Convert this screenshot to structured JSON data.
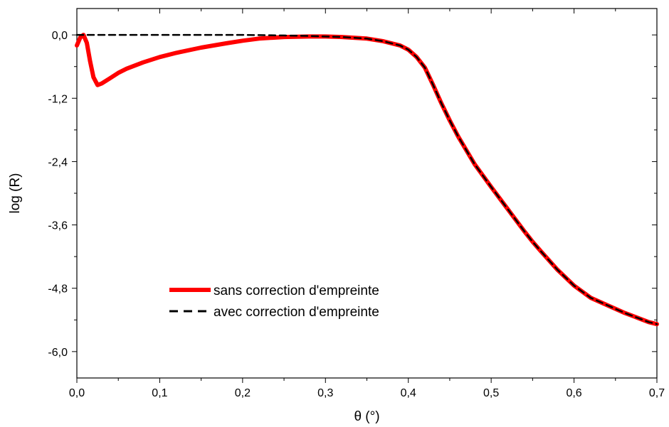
{
  "chart_data": {
    "type": "line",
    "title": "",
    "xlabel": "θ (°)",
    "ylabel": "log (R)",
    "xlim": [
      0.0,
      0.7
    ],
    "ylim": [
      -6.5,
      0.5
    ],
    "x_ticks": [
      0.0,
      0.1,
      0.2,
      0.3,
      0.4,
      0.5,
      0.6,
      0.7
    ],
    "x_tick_labels": [
      "0,0",
      "0,1",
      "0,2",
      "0,3",
      "0,4",
      "0,5",
      "0,6",
      "0,7"
    ],
    "y_ticks": [
      0.0,
      -1.2,
      -2.4,
      -3.6,
      -4.8,
      -6.0
    ],
    "y_tick_labels": [
      "0,0",
      "-1,2",
      "-2,4",
      "-3,6",
      "-4,8",
      "-6,0"
    ],
    "grid": false,
    "legend_position": "bottom-center",
    "series": [
      {
        "name": "sans correction d'empreinte",
        "color": "#ff0000",
        "style": "solid",
        "x": [
          0.0,
          0.004,
          0.008,
          0.012,
          0.016,
          0.02,
          0.025,
          0.03,
          0.04,
          0.05,
          0.06,
          0.08,
          0.1,
          0.12,
          0.15,
          0.18,
          0.2,
          0.22,
          0.25,
          0.28,
          0.3,
          0.32,
          0.35,
          0.37,
          0.39,
          0.4,
          0.41,
          0.42,
          0.43,
          0.44,
          0.45,
          0.46,
          0.48,
          0.5,
          0.52,
          0.54,
          0.55,
          0.56,
          0.58,
          0.6,
          0.62,
          0.64,
          0.66,
          0.68,
          0.69,
          0.7
        ],
        "y": [
          -0.2,
          -0.05,
          0.0,
          -0.15,
          -0.5,
          -0.8,
          -0.95,
          -0.92,
          -0.82,
          -0.72,
          -0.64,
          -0.52,
          -0.42,
          -0.34,
          -0.24,
          -0.16,
          -0.11,
          -0.07,
          -0.04,
          -0.03,
          -0.03,
          -0.04,
          -0.07,
          -0.12,
          -0.2,
          -0.28,
          -0.42,
          -0.62,
          -0.95,
          -1.3,
          -1.62,
          -1.92,
          -2.45,
          -2.88,
          -3.3,
          -3.72,
          -3.92,
          -4.1,
          -4.45,
          -4.75,
          -4.98,
          -5.12,
          -5.26,
          -5.38,
          -5.44,
          -5.48
        ]
      },
      {
        "name": "avec correction d'empreinte",
        "color": "#000000",
        "style": "dashed",
        "x": [
          0.0,
          0.05,
          0.1,
          0.15,
          0.2,
          0.25,
          0.28,
          0.3,
          0.32,
          0.35,
          0.37,
          0.39,
          0.4,
          0.41,
          0.42,
          0.43,
          0.44,
          0.45,
          0.46,
          0.48,
          0.5,
          0.52,
          0.54,
          0.55,
          0.56,
          0.58,
          0.6,
          0.62,
          0.64,
          0.66,
          0.68,
          0.69,
          0.7
        ],
        "y": [
          0.0,
          0.0,
          0.0,
          0.0,
          0.0,
          -0.01,
          -0.02,
          -0.03,
          -0.04,
          -0.07,
          -0.12,
          -0.2,
          -0.28,
          -0.42,
          -0.62,
          -0.95,
          -1.3,
          -1.62,
          -1.92,
          -2.45,
          -2.88,
          -3.3,
          -3.72,
          -3.92,
          -4.1,
          -4.45,
          -4.75,
          -4.98,
          -5.12,
          -5.26,
          -5.38,
          -5.44,
          -5.48
        ]
      }
    ]
  }
}
